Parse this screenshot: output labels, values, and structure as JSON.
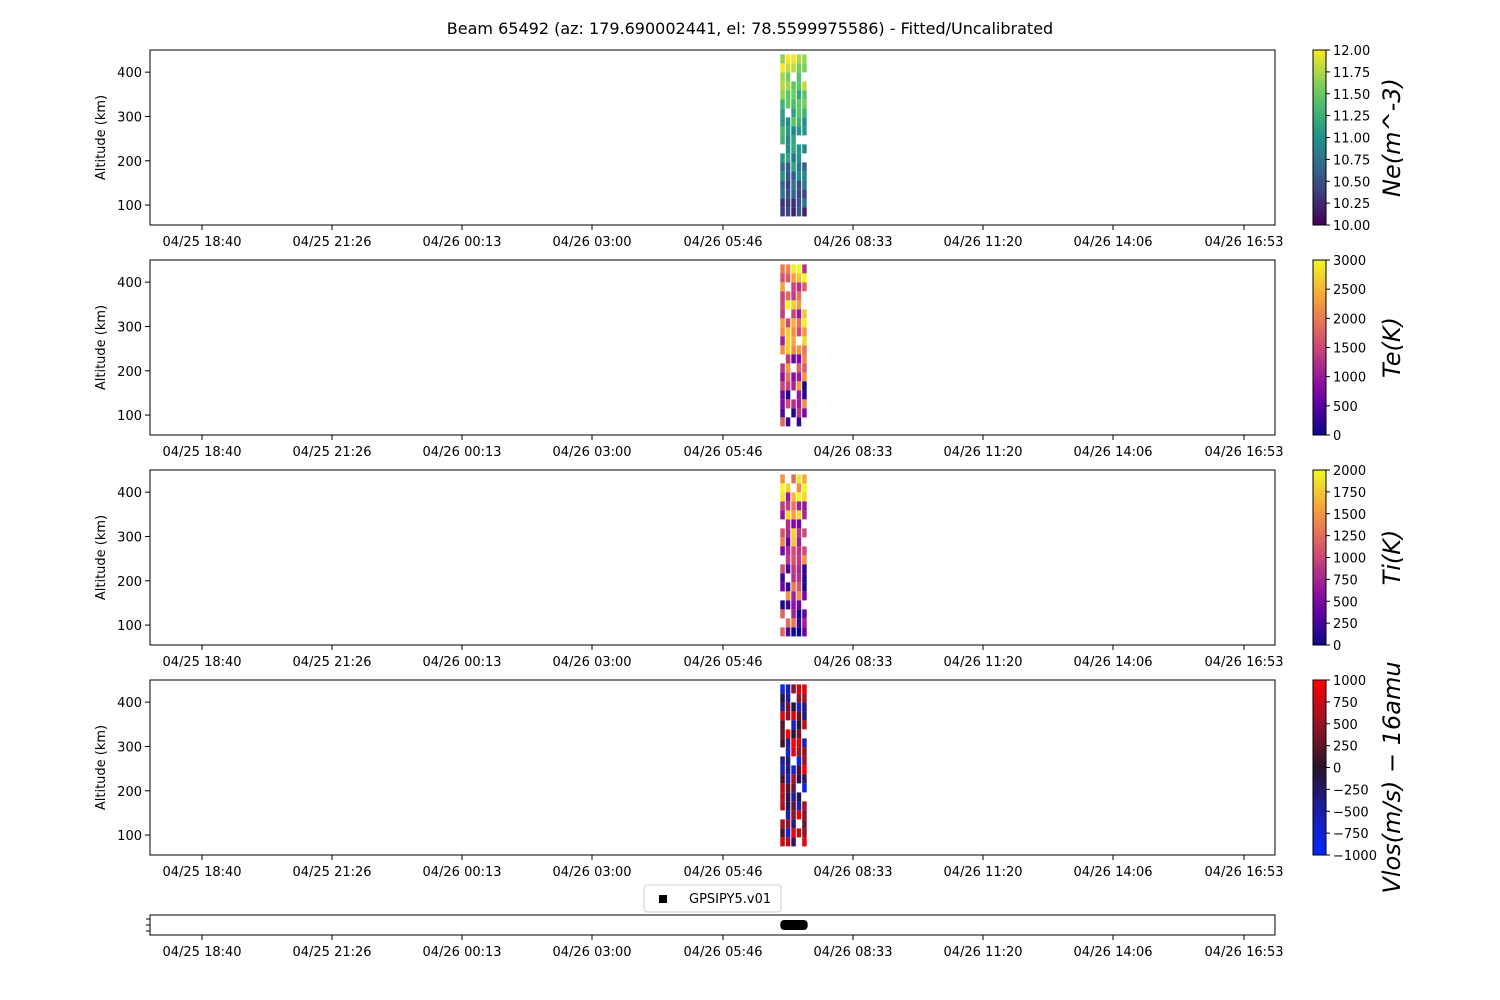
{
  "title": "Beam 65492 (az: 179.690002441, el: 78.5599975586) - Fitted/Uncalibrated",
  "time_ticks": [
    "04/25 18:40",
    "04/25 21:26",
    "04/26 00:13",
    "04/26 03:00",
    "04/26 05:46",
    "04/26 08:33",
    "04/26 11:20",
    "04/26 14:06",
    "04/26 16:53"
  ],
  "chart_data": [
    {
      "type": "heatmap",
      "ylabel": "Altitude (km)",
      "yticks": [
        100,
        200,
        300,
        400
      ],
      "ylim": [
        55,
        450
      ],
      "x_data_span": [
        "04/26 07:00",
        "04/26 07:35"
      ],
      "altitude_range_km": [
        85,
        440
      ],
      "colorbar": {
        "label": "Ne(m^-3)",
        "cmap": "viridis",
        "vmin": 10.0,
        "vmax": 12.0,
        "ticks": [
          "10.00",
          "10.25",
          "10.50",
          "10.75",
          "11.00",
          "11.25",
          "11.50",
          "11.75",
          "12.00"
        ]
      }
    },
    {
      "type": "heatmap",
      "ylabel": "Altitude (km)",
      "yticks": [
        100,
        200,
        300,
        400
      ],
      "ylim": [
        55,
        450
      ],
      "x_data_span": [
        "04/26 07:00",
        "04/26 07:35"
      ],
      "altitude_range_km": [
        85,
        440
      ],
      "colorbar": {
        "label": "Te(K)",
        "cmap": "plasma",
        "vmin": 0,
        "vmax": 3000,
        "ticks": [
          "0",
          "500",
          "1000",
          "1500",
          "2000",
          "2500",
          "3000"
        ]
      }
    },
    {
      "type": "heatmap",
      "ylabel": "Altitude (km)",
      "yticks": [
        100,
        200,
        300,
        400
      ],
      "ylim": [
        55,
        450
      ],
      "x_data_span": [
        "04/26 07:00",
        "04/26 07:35"
      ],
      "altitude_range_km": [
        85,
        440
      ],
      "colorbar": {
        "label": "Ti(K)",
        "cmap": "plasma",
        "vmin": 0,
        "vmax": 2000,
        "ticks": [
          "0",
          "250",
          "500",
          "750",
          "1000",
          "1250",
          "1500",
          "1750",
          "2000"
        ]
      }
    },
    {
      "type": "heatmap",
      "ylabel": "Altitude (km)",
      "yticks": [
        100,
        200,
        300,
        400
      ],
      "ylim": [
        55,
        450
      ],
      "x_data_span": [
        "04/26 07:00",
        "04/26 07:35"
      ],
      "altitude_range_km": [
        85,
        440
      ],
      "colorbar": {
        "label": "Vlos(m/s) − 16amu",
        "cmap": "blue-black-red",
        "vmin": -1000,
        "vmax": 1000,
        "ticks": [
          "−1000",
          "−750",
          "−500",
          "−250",
          "0",
          "250",
          "500",
          "750",
          "1000"
        ]
      }
    },
    {
      "type": "scatter",
      "series": [
        {
          "name": "GPSIPY5.v01",
          "x_span": [
            "04/26 07:00",
            "04/26 07:35"
          ],
          "marker": "square",
          "color": "#000000"
        }
      ]
    }
  ]
}
